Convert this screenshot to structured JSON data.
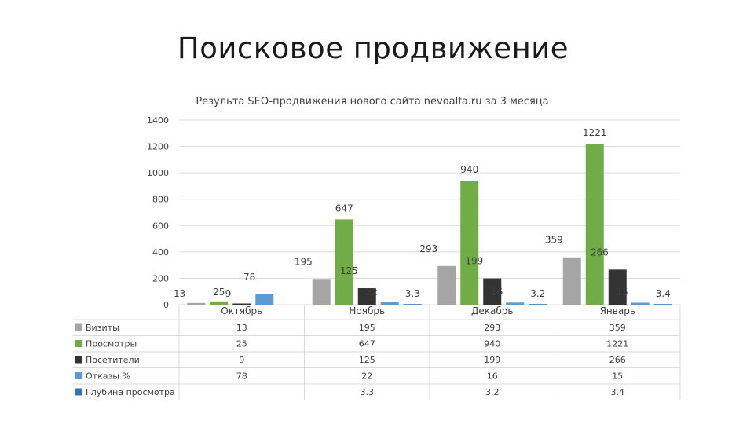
{
  "slide": {
    "title": "Поисковое продвижение"
  },
  "chart_data": {
    "type": "bar",
    "title": "Результа SEO-продвижения нового сайта nevoalfa.ru за 3 месяца",
    "categories": [
      "Октябрь",
      "Ноябрь",
      "Декабрь",
      "Январь"
    ],
    "ylim": [
      0,
      1400
    ],
    "yticks": [
      "0",
      "200",
      "400",
      "600",
      "800",
      "1000",
      "1200",
      "1400"
    ],
    "grid": true,
    "data_table": true,
    "series": [
      {
        "name": "Визиты",
        "color": "#a5a5a5",
        "values": [
          13,
          195,
          293,
          359
        ],
        "labels": [
          "13",
          "195",
          "293",
          "359"
        ]
      },
      {
        "name": "Просмотры",
        "color": "#70ad47",
        "values": [
          25,
          647,
          940,
          1221
        ],
        "labels": [
          "25",
          "647",
          "940",
          "1221"
        ]
      },
      {
        "name": "Посетители",
        "color": "#333333",
        "values": [
          9,
          125,
          199,
          266
        ],
        "labels": [
          "9",
          "125",
          "199",
          "266"
        ]
      },
      {
        "name": "Отказы %",
        "color": "#5b9bd5",
        "values": [
          78,
          22,
          16,
          15
        ],
        "labels": [
          "78",
          "22",
          "16",
          "15"
        ]
      },
      {
        "name": "Глубина просмотра",
        "color": "#2e75b6",
        "values": [
          null,
          3.3,
          3.2,
          3.4
        ],
        "labels": [
          "",
          "3.3",
          "3.2",
          "3.4"
        ]
      }
    ]
  }
}
